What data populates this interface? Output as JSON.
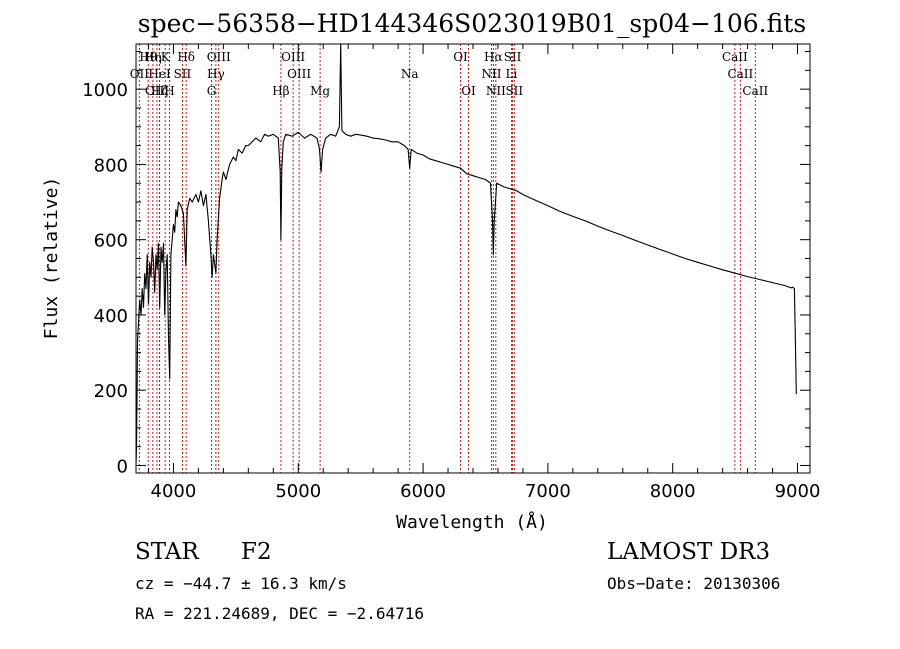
{
  "chart_data": {
    "type": "line",
    "title": "spec−56358−HD144346S023019B01_sp04−106.fits",
    "xlabel": "Wavelength (Å)",
    "ylabel": "Flux (relative)",
    "xlim": [
      3700,
      9100
    ],
    "ylim": [
      -20,
      1120
    ],
    "x_ticks": [
      "4000",
      "5000",
      "6000",
      "7000",
      "8000",
      "9000"
    ],
    "y_ticks": [
      "0",
      "200",
      "400",
      "600",
      "800",
      "1000"
    ],
    "grid": false,
    "series": [
      {
        "points": [
          [
            3700,
            0
          ],
          [
            3705,
            60
          ],
          [
            3712,
            330
          ],
          [
            3720,
            380
          ],
          [
            3730,
            440
          ],
          [
            3740,
            400
          ],
          [
            3750,
            470
          ],
          [
            3760,
            420
          ],
          [
            3770,
            510
          ],
          [
            3780,
            470
          ],
          [
            3790,
            560
          ],
          [
            3800,
            430
          ],
          [
            3810,
            540
          ],
          [
            3820,
            500
          ],
          [
            3830,
            580
          ],
          [
            3840,
            540
          ],
          [
            3850,
            460
          ],
          [
            3860,
            560
          ],
          [
            3870,
            520
          ],
          [
            3880,
            590
          ],
          [
            3890,
            420
          ],
          [
            3900,
            580
          ],
          [
            3910,
            540
          ],
          [
            3920,
            590
          ],
          [
            3930,
            400
          ],
          [
            3940,
            520
          ],
          [
            3950,
            560
          ],
          [
            3960,
            340
          ],
          [
            3970,
            230
          ],
          [
            3980,
            560
          ],
          [
            3990,
            600
          ],
          [
            4000,
            640
          ],
          [
            4010,
            620
          ],
          [
            4020,
            680
          ],
          [
            4030,
            660
          ],
          [
            4040,
            700
          ],
          [
            4060,
            690
          ],
          [
            4080,
            670
          ],
          [
            4100,
            530
          ],
          [
            4110,
            680
          ],
          [
            4130,
            710
          ],
          [
            4150,
            700
          ],
          [
            4180,
            720
          ],
          [
            4200,
            700
          ],
          [
            4220,
            730
          ],
          [
            4240,
            690
          ],
          [
            4260,
            720
          ],
          [
            4280,
            650
          ],
          [
            4300,
            560
          ],
          [
            4310,
            500
          ],
          [
            4320,
            560
          ],
          [
            4340,
            510
          ],
          [
            4350,
            600
          ],
          [
            4370,
            710
          ],
          [
            4390,
            760
          ],
          [
            4400,
            780
          ],
          [
            4420,
            760
          ],
          [
            4450,
            800
          ],
          [
            4480,
            820
          ],
          [
            4500,
            810
          ],
          [
            4520,
            840
          ],
          [
            4550,
            830
          ],
          [
            4580,
            850
          ],
          [
            4600,
            850
          ],
          [
            4630,
            860
          ],
          [
            4660,
            870
          ],
          [
            4700,
            860
          ],
          [
            4730,
            880
          ],
          [
            4760,
            875
          ],
          [
            4800,
            880
          ],
          [
            4840,
            870
          ],
          [
            4855,
            780
          ],
          [
            4861,
            600
          ],
          [
            4868,
            790
          ],
          [
            4880,
            860
          ],
          [
            4900,
            880
          ],
          [
            4950,
            875
          ],
          [
            5000,
            885
          ],
          [
            5050,
            870
          ],
          [
            5100,
            880
          ],
          [
            5150,
            870
          ],
          [
            5170,
            840
          ],
          [
            5183,
            780
          ],
          [
            5195,
            840
          ],
          [
            5220,
            870
          ],
          [
            5260,
            880
          ],
          [
            5300,
            875
          ],
          [
            5330,
            900
          ],
          [
            5340,
            1120
          ],
          [
            5350,
            890
          ],
          [
            5380,
            880
          ],
          [
            5420,
            875
          ],
          [
            5460,
            880
          ],
          [
            5500,
            878
          ],
          [
            5550,
            875
          ],
          [
            5600,
            870
          ],
          [
            5650,
            868
          ],
          [
            5700,
            865
          ],
          [
            5750,
            860
          ],
          [
            5800,
            860
          ],
          [
            5850,
            850
          ],
          [
            5880,
            840
          ],
          [
            5893,
            790
          ],
          [
            5905,
            840
          ],
          [
            5950,
            830
          ],
          [
            6000,
            825
          ],
          [
            6050,
            815
          ],
          [
            6100,
            810
          ],
          [
            6150,
            805
          ],
          [
            6200,
            800
          ],
          [
            6250,
            795
          ],
          [
            6300,
            790
          ],
          [
            6350,
            775
          ],
          [
            6400,
            770
          ],
          [
            6450,
            765
          ],
          [
            6500,
            760
          ],
          [
            6540,
            750
          ],
          [
            6556,
            650
          ],
          [
            6563,
            560
          ],
          [
            6570,
            650
          ],
          [
            6590,
            750
          ],
          [
            6650,
            740
          ],
          [
            6700,
            735
          ],
          [
            6750,
            730
          ],
          [
            6800,
            720
          ],
          [
            6900,
            705
          ],
          [
            7000,
            690
          ],
          [
            7100,
            675
          ],
          [
            7200,
            662
          ],
          [
            7300,
            650
          ],
          [
            7400,
            636
          ],
          [
            7500,
            623
          ],
          [
            7600,
            611
          ],
          [
            7700,
            598
          ],
          [
            7800,
            586
          ],
          [
            7900,
            574
          ],
          [
            8000,
            562
          ],
          [
            8100,
            550
          ],
          [
            8200,
            540
          ],
          [
            8300,
            530
          ],
          [
            8400,
            520
          ],
          [
            8500,
            511
          ],
          [
            8600,
            502
          ],
          [
            8700,
            494
          ],
          [
            8800,
            486
          ],
          [
            8900,
            478
          ],
          [
            8950,
            472
          ],
          [
            8960,
            474
          ],
          [
            8975,
            470
          ],
          [
            8985,
            300
          ],
          [
            8990,
            190
          ]
        ]
      }
    ],
    "line_markers": [
      {
        "label": "Hθ",
        "x": 3798,
        "row": 0
      },
      {
        "label": "Hη",
        "x": 3835,
        "row": 0
      },
      {
        "label": "K",
        "x": 3934,
        "row": 0
      },
      {
        "label": "Hδ",
        "x": 4102,
        "row": 0
      },
      {
        "label": "OIII",
        "x": 4363,
        "row": 0
      },
      {
        "label": "OIII",
        "x": 4959,
        "row": 0
      },
      {
        "label": "OI",
        "x": 6300,
        "row": 0
      },
      {
        "label": "Hα",
        "x": 6563,
        "row": 0
      },
      {
        "label": "SII",
        "x": 6717,
        "row": 0
      },
      {
        "label": "CaII",
        "x": 8498,
        "row": 0
      },
      {
        "label": "OII",
        "x": 3727,
        "row": 1
      },
      {
        "label": "HeI",
        "x": 3889,
        "row": 1
      },
      {
        "label": "SII",
        "x": 4072,
        "row": 1
      },
      {
        "label": "Hγ",
        "x": 4340,
        "row": 1
      },
      {
        "label": "OIII",
        "x": 5007,
        "row": 1
      },
      {
        "label": "Na",
        "x": 5893,
        "row": 1
      },
      {
        "label": "NII",
        "x": 6548,
        "row": 1
      },
      {
        "label": "Li",
        "x": 6708,
        "row": 1
      },
      {
        "label": "CaII",
        "x": 8542,
        "row": 1
      },
      {
        "label": "OIII",
        "x": 3868,
        "row": 2
      },
      {
        "label": "Hζ",
        "x": 3889,
        "row": 2
      },
      {
        "label": "H",
        "x": 3968,
        "row": 2
      },
      {
        "label": "G",
        "x": 4305,
        "row": 2
      },
      {
        "label": "Hβ",
        "x": 4861,
        "row": 2
      },
      {
        "label": "Mg",
        "x": 5175,
        "row": 2
      },
      {
        "label": "OI",
        "x": 6364,
        "row": 2
      },
      {
        "label": "NII",
        "x": 6583,
        "row": 2
      },
      {
        "label": "SII",
        "x": 6731,
        "row": 2
      },
      {
        "label": "CaII",
        "x": 8662,
        "row": 2
      }
    ],
    "colors": {
      "spectrum": "#000000",
      "markers": "#cc0000",
      "axes": "#000000"
    }
  },
  "info": {
    "object_class": "STAR",
    "subclass": "F2",
    "survey": "LAMOST DR3",
    "redshift_line": "cz = −44.7 ± 16.3 km/s",
    "obs_date_line": "Obs−Date: 20130306",
    "coords_line": "RA = 221.24689, DEC =  −2.64716"
  }
}
